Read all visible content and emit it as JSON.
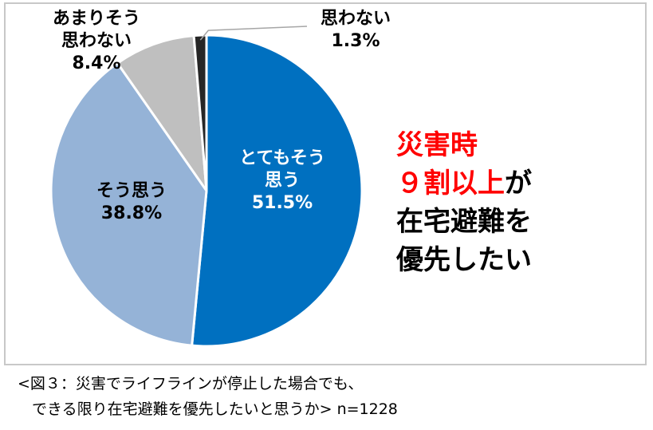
{
  "chart_data": {
    "type": "pie",
    "start": "12 o'clock",
    "direction": "clockwise",
    "slices": [
      {
        "name": "とてもそう思う",
        "value": 51.5,
        "label_lines": [
          "とてもそう",
          "思う",
          "51.5%"
        ],
        "color": "#0070c0",
        "label_color": "#ffffff"
      },
      {
        "name": "そう思う",
        "value": 38.8,
        "label_lines": [
          "そう思う",
          "38.8%"
        ],
        "color": "#95b3d7",
        "label_color": "#000000"
      },
      {
        "name": "あまりそう思わない",
        "value": 8.4,
        "label_lines": [
          "あまりそう",
          "思わない",
          "8.4%"
        ],
        "color": "#bfbfbf",
        "label_color": "#000000"
      },
      {
        "name": "思わない",
        "value": 1.3,
        "label_lines": [
          "思わない",
          "1.3%"
        ],
        "color": "#262626",
        "label_color": "#000000"
      }
    ]
  },
  "callout": {
    "line1": "災害時",
    "line2_red": "９割以上",
    "line2_black": "が",
    "line3": "在宅避難を",
    "line4": "優先したい"
  },
  "caption": {
    "line1": "<図３：災害でライフラインが停止した場合でも、",
    "line2": "できる限り在宅避難を優先したいと思うか> n=1228"
  }
}
